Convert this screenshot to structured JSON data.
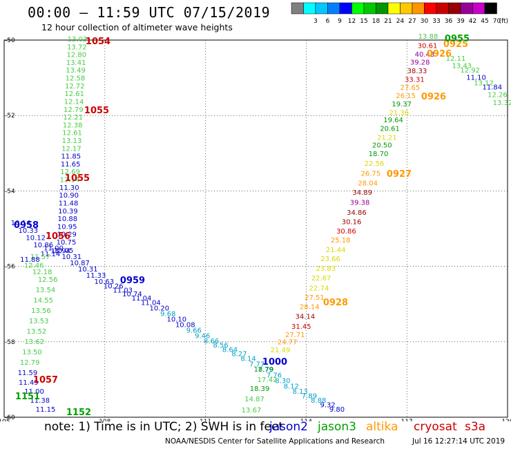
{
  "header": {
    "title": "00:00 – 11:59 UTC 07/15/2019",
    "subtitle": "12 hour collection of altimeter wave heights"
  },
  "legend": {
    "unit": "(ft)",
    "swatches": [
      {
        "label": "",
        "color": "#808080"
      },
      {
        "label": "3",
        "color": "#00ffff"
      },
      {
        "label": "6",
        "color": "#00c8ff"
      },
      {
        "label": "9",
        "color": "#0080ff"
      },
      {
        "label": "12",
        "color": "#0000ff"
      },
      {
        "label": "15",
        "color": "#00ff00"
      },
      {
        "label": "18",
        "color": "#00c800"
      },
      {
        "label": "21",
        "color": "#009600"
      },
      {
        "label": "24",
        "color": "#ffff00"
      },
      {
        "label": "27",
        "color": "#ffc800"
      },
      {
        "label": "30",
        "color": "#ff9600"
      },
      {
        "label": "33",
        "color": "#ff0000"
      },
      {
        "label": "36",
        "color": "#c80000"
      },
      {
        "label": "39",
        "color": "#960000"
      },
      {
        "label": "42",
        "color": "#960096"
      },
      {
        "label": "45",
        "color": "#c800c8"
      },
      {
        "label": "70",
        "color": "#000000"
      }
    ]
  },
  "map": {
    "lon_ticks": [
      "105",
      "108",
      "111",
      "114",
      "117",
      "120"
    ],
    "lat_ticks": [
      "-50",
      "-52",
      "-54",
      "-56",
      "-58",
      "-60"
    ],
    "colors": {
      "grid": "#000000",
      "jason2": "#0000cc",
      "jason3": "#00a000",
      "altika": "#ff9900",
      "cryosat": "#cc0000",
      "s3a": "#cc0000",
      "lightgreen": "#44cc44",
      "cyan": "#00a0c8"
    },
    "tracks": [
      {
        "name": "track-1054",
        "labels": [
          {
            "t": "13.03",
            "c": "#44cc44"
          },
          {
            "t": "13.72",
            "c": "#44cc44"
          },
          {
            "t": "12.80",
            "c": "#44cc44"
          },
          {
            "t": "13.41",
            "c": "#44cc44"
          },
          {
            "t": "13.49",
            "c": "#44cc44"
          },
          {
            "t": "12.58",
            "c": "#44cc44"
          },
          {
            "t": "12.72",
            "c": "#44cc44"
          },
          {
            "t": "12.61",
            "c": "#44cc44"
          },
          {
            "t": "12.14",
            "c": "#44cc44"
          },
          {
            "t": "12.79",
            "c": "#44cc44"
          },
          {
            "t": "12.21",
            "c": "#44cc44"
          },
          {
            "t": "12.38",
            "c": "#44cc44"
          },
          {
            "t": "12.61",
            "c": "#44cc44"
          },
          {
            "t": "13.13",
            "c": "#44cc44"
          },
          {
            "t": "12.17",
            "c": "#44cc44"
          },
          {
            "t": "11.85",
            "c": "#0000cc"
          },
          {
            "t": "11.65",
            "c": "#0000cc"
          },
          {
            "t": "12.69",
            "c": "#44cc44"
          },
          {
            "t": "12.14",
            "c": "#44cc44"
          },
          {
            "t": "11.30",
            "c": "#0000cc"
          },
          {
            "t": "10.90",
            "c": "#0000cc"
          },
          {
            "t": "11.48",
            "c": "#0000cc"
          },
          {
            "t": "10.39",
            "c": "#0000cc"
          },
          {
            "t": "10.88",
            "c": "#0000cc"
          },
          {
            "t": "10.95",
            "c": "#0000cc"
          },
          {
            "t": "10.29",
            "c": "#0000cc"
          },
          {
            "t": "10.75",
            "c": "#0000cc"
          }
        ]
      },
      {
        "name": "track-1056",
        "labels": [
          {
            "t": "10.14",
            "c": "#0000cc"
          },
          {
            "t": "10.33",
            "c": "#0000cc"
          },
          {
            "t": "10.12",
            "c": "#0000cc"
          },
          {
            "t": "10.86",
            "c": "#0000cc"
          },
          {
            "t": "11.00",
            "c": "#0000cc"
          },
          {
            "t": "11.94",
            "c": "#0000cc"
          },
          {
            "t": "11.14",
            "c": "#0000cc"
          },
          {
            "t": "11.57",
            "c": "#44cc44"
          },
          {
            "t": "11.88",
            "c": "#0000cc"
          },
          {
            "t": "12.46",
            "c": "#44cc44"
          },
          {
            "t": "12.18",
            "c": "#44cc44"
          },
          {
            "t": "12.56",
            "c": "#44cc44"
          },
          {
            "t": "13.54",
            "c": "#44cc44"
          },
          {
            "t": "14.55",
            "c": "#44cc44"
          },
          {
            "t": "13.56",
            "c": "#44cc44"
          },
          {
            "t": "13.53",
            "c": "#44cc44"
          },
          {
            "t": "13.52",
            "c": "#44cc44"
          },
          {
            "t": "13.62",
            "c": "#44cc44"
          },
          {
            "t": "13.50",
            "c": "#44cc44"
          },
          {
            "t": "12.79",
            "c": "#44cc44"
          },
          {
            "t": "11.59",
            "c": "#0000cc"
          },
          {
            "t": "11.49",
            "c": "#0000cc"
          },
          {
            "t": "11.00",
            "c": "#0000cc"
          },
          {
            "t": "11.38",
            "c": "#0000cc"
          },
          {
            "t": "11.15",
            "c": "#0000cc"
          }
        ]
      },
      {
        "name": "track-0959",
        "labels": [
          {
            "t": "10.05",
            "c": "#0000cc"
          },
          {
            "t": "10.31",
            "c": "#0000cc"
          },
          {
            "t": "10.87",
            "c": "#0000cc"
          },
          {
            "t": "10.31",
            "c": "#0000cc"
          },
          {
            "t": "11.33",
            "c": "#0000cc"
          },
          {
            "t": "10.63",
            "c": "#0000cc"
          },
          {
            "t": "10.26",
            "c": "#0000cc"
          },
          {
            "t": "11.03",
            "c": "#0000cc"
          },
          {
            "t": "10.74",
            "c": "#0000cc"
          },
          {
            "t": "11.04",
            "c": "#0000cc"
          },
          {
            "t": "11.04",
            "c": "#0000cc"
          },
          {
            "t": "10.20",
            "c": "#0000cc"
          },
          {
            "t": "9.68",
            "c": "#00a0c8"
          },
          {
            "t": "10.10",
            "c": "#0000cc"
          },
          {
            "t": "10.08",
            "c": "#0000cc"
          },
          {
            "t": "9.66",
            "c": "#00a0c8"
          },
          {
            "t": "9.46",
            "c": "#00a0c8"
          },
          {
            "t": "8.66",
            "c": "#00a0c8"
          },
          {
            "t": "8.56",
            "c": "#00a0c8"
          },
          {
            "t": "8.64",
            "c": "#00a0c8"
          },
          {
            "t": "8.27",
            "c": "#00a0c8"
          },
          {
            "t": "8.14",
            "c": "#00a0c8"
          },
          {
            "t": "7.77",
            "c": "#00a0c8"
          },
          {
            "t": "7.79",
            "c": "#00a0c8"
          },
          {
            "t": "7.76",
            "c": "#00a0c8"
          },
          {
            "t": "8.30",
            "c": "#00a0c8"
          },
          {
            "t": "8.12",
            "c": "#00a0c8"
          },
          {
            "t": "8.13",
            "c": "#00a0c8"
          },
          {
            "t": "7.89",
            "c": "#00a0c8"
          },
          {
            "t": "8.88",
            "c": "#00a0c8"
          },
          {
            "t": "9.32",
            "c": "#0000cc"
          },
          {
            "t": "9.80",
            "c": "#0000cc"
          }
        ]
      },
      {
        "name": "track-1000",
        "labels": [
          {
            "t": "18.79",
            "c": "#009600"
          },
          {
            "t": "17.42",
            "c": "#44cc44"
          },
          {
            "t": "18.39",
            "c": "#009600"
          },
          {
            "t": "14.87",
            "c": "#44cc44"
          },
          {
            "t": "13.67",
            "c": "#44cc44"
          }
        ]
      },
      {
        "name": "track-0928",
        "labels": [
          {
            "t": "21.49",
            "c": "#d8d800"
          },
          {
            "t": "24.77",
            "c": "#ff9900"
          },
          {
            "t": "27.71",
            "c": "#ff9900"
          },
          {
            "t": "31.45",
            "c": "#cc0000"
          },
          {
            "t": "34.14",
            "c": "#960000"
          },
          {
            "t": "28.14",
            "c": "#ff9900"
          },
          {
            "t": "27.51",
            "c": "#ff9900"
          },
          {
            "t": "22.74",
            "c": "#d8d800"
          },
          {
            "t": "22.67",
            "c": "#d8d800"
          },
          {
            "t": "23.83",
            "c": "#d8d800"
          },
          {
            "t": "23.66",
            "c": "#d8d800"
          },
          {
            "t": "21.44",
            "c": "#d8d800"
          },
          {
            "t": "25.18",
            "c": "#ff9900"
          },
          {
            "t": "30.86",
            "c": "#cc0000"
          },
          {
            "t": "30.16",
            "c": "#960000"
          },
          {
            "t": "34.86",
            "c": "#960000"
          },
          {
            "t": "39.38",
            "c": "#960096"
          },
          {
            "t": "34.89",
            "c": "#960000"
          },
          {
            "t": "28.04",
            "c": "#ff9900"
          },
          {
            "t": "26.75",
            "c": "#ff9900"
          },
          {
            "t": "22.56",
            "c": "#d8d800"
          }
        ]
      },
      {
        "name": "track-0927",
        "labels": [
          {
            "t": "18.70",
            "c": "#009600"
          },
          {
            "t": "20.50",
            "c": "#009600"
          },
          {
            "t": "21.21",
            "c": "#d8d800"
          },
          {
            "t": "20.61",
            "c": "#009600"
          },
          {
            "t": "19.64",
            "c": "#009600"
          },
          {
            "t": "21.36",
            "c": "#d8d800"
          },
          {
            "t": "19.37",
            "c": "#009600"
          },
          {
            "t": "26.15",
            "c": "#ff9900"
          },
          {
            "t": "27.65",
            "c": "#ff9900"
          },
          {
            "t": "33.31",
            "c": "#cc0000"
          },
          {
            "t": "38.33",
            "c": "#960000"
          },
          {
            "t": "39.28",
            "c": "#960096"
          },
          {
            "t": "40.43",
            "c": "#960096"
          },
          {
            "t": "30.61",
            "c": "#cc0000"
          },
          {
            "t": "13.88",
            "c": "#44cc44"
          }
        ]
      },
      {
        "name": "track-0955",
        "labels": [
          {
            "t": "12.11",
            "c": "#44cc44"
          },
          {
            "t": "13.43",
            "c": "#44cc44"
          },
          {
            "t": "12.92",
            "c": "#44cc44"
          },
          {
            "t": "11.10",
            "c": "#0000cc"
          },
          {
            "t": "13.12",
            "c": "#44cc44"
          },
          {
            "t": "11.84",
            "c": "#0000cc"
          },
          {
            "t": "12.26",
            "c": "#44cc44"
          },
          {
            "t": "13.32",
            "c": "#44cc44"
          }
        ]
      }
    ],
    "pass_labels": [
      {
        "t": "1054",
        "c": "#cc0000"
      },
      {
        "t": "1055",
        "c": "#cc0000"
      },
      {
        "t": "1055",
        "c": "#cc0000"
      },
      {
        "t": "1056",
        "c": "#cc0000"
      },
      {
        "t": "1057",
        "c": "#cc0000"
      },
      {
        "t": "0958",
        "c": "#0000cc"
      },
      {
        "t": "0959",
        "c": "#0000cc"
      },
      {
        "t": "1000",
        "c": "#0000cc"
      },
      {
        "t": "1151",
        "c": "#00a000"
      },
      {
        "t": "1152",
        "c": "#00a000"
      },
      {
        "t": "0928",
        "c": "#ff9900"
      },
      {
        "t": "0927",
        "c": "#ff9900"
      },
      {
        "t": "0926",
        "c": "#ff9900"
      },
      {
        "t": "0925",
        "c": "#ff9900"
      },
      {
        "t": "0926",
        "c": "#ff9900"
      },
      {
        "t": "0955",
        "c": "#00a000"
      }
    ]
  },
  "notes": {
    "note": "note:  1) Time is in UTC;  2) SWH is in feet",
    "sat_jason2": "jason2",
    "sat_jason3": "jason3",
    "sat_altika": "altika",
    "sat_cryosat": "cryosat",
    "sat_s3a": "s3a"
  },
  "footer": {
    "source": "NOAA/NESDIS Center for Satellite Applications and Research",
    "timestamp": "Jul 16 12:27:14 UTC 2019"
  }
}
